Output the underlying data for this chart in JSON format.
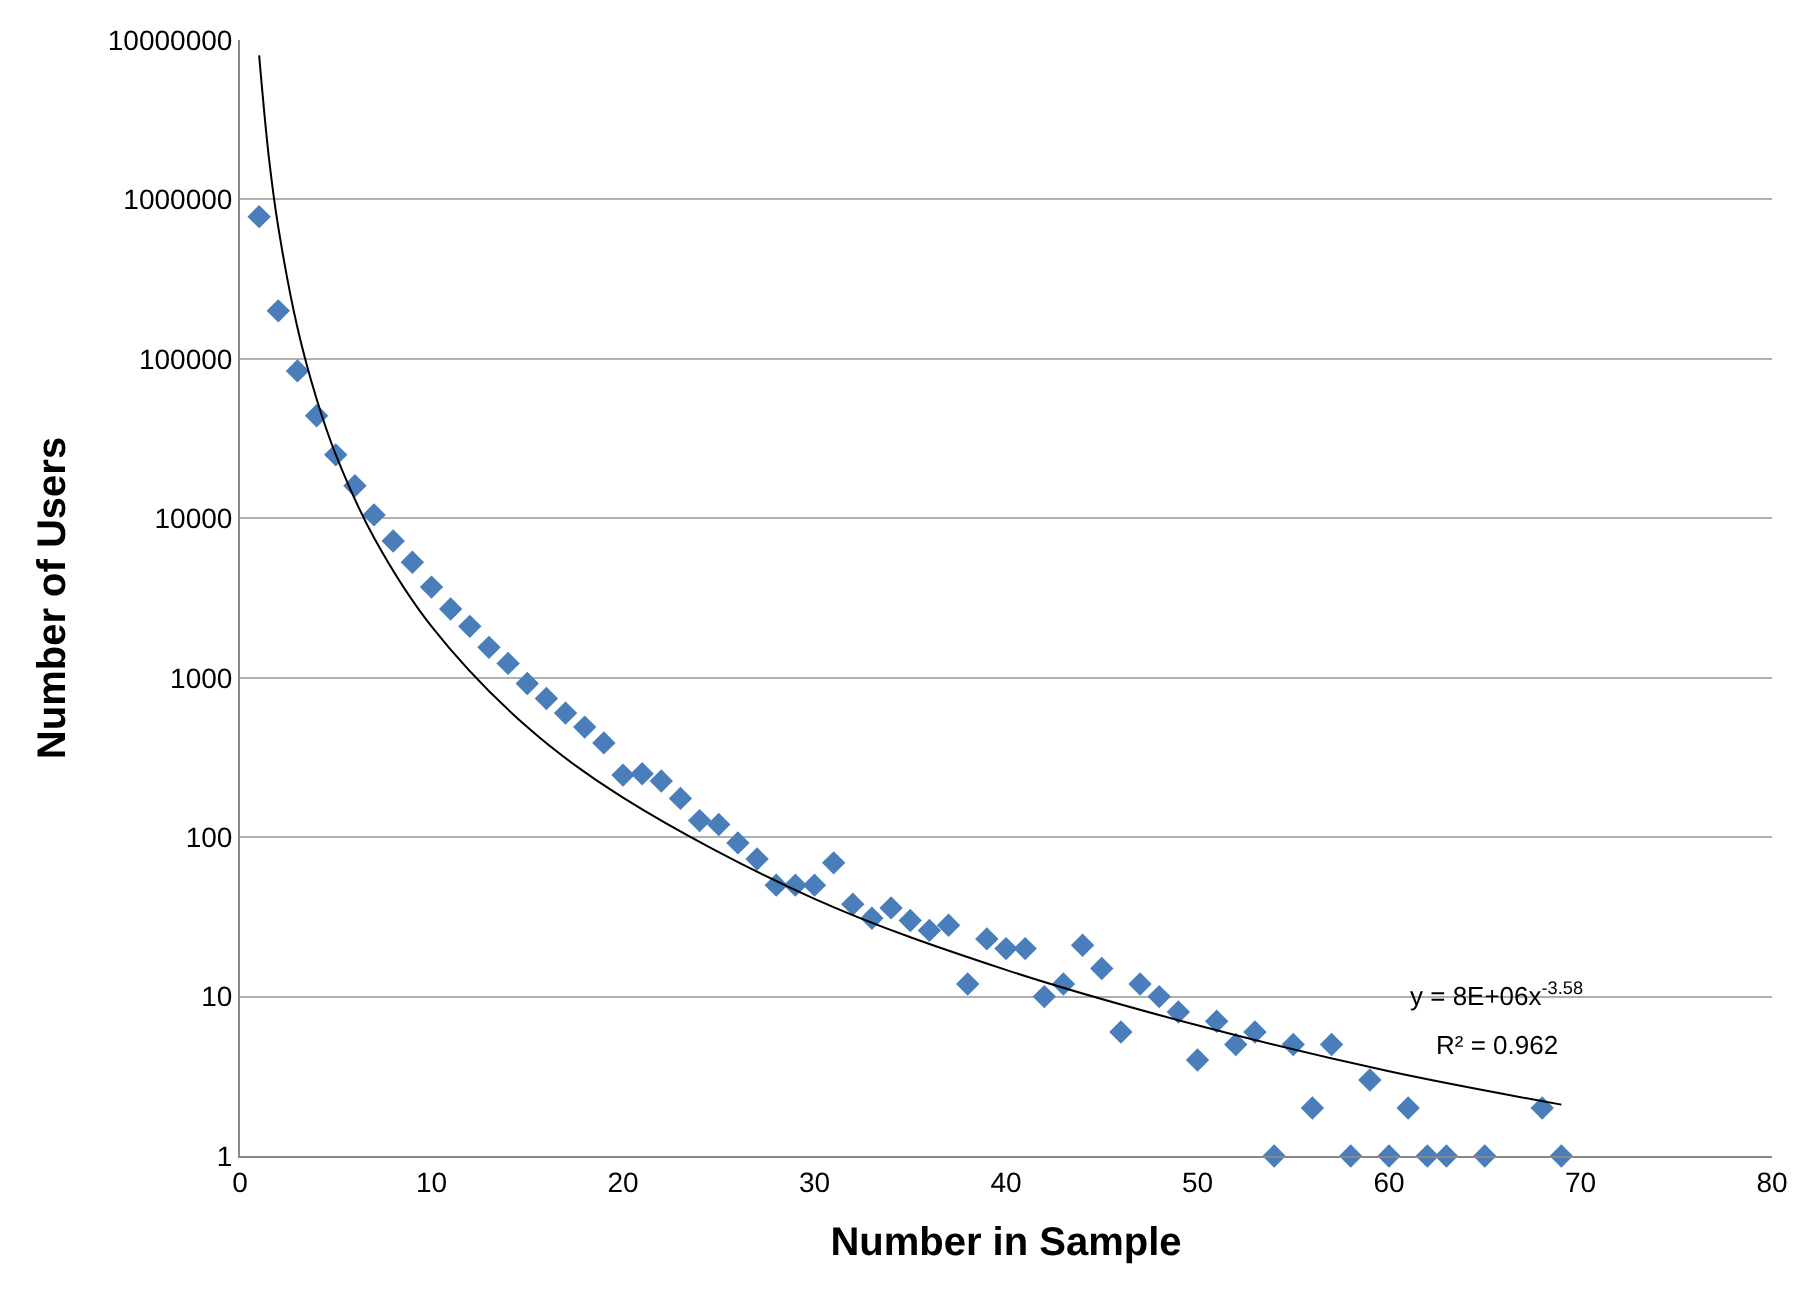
{
  "chart_data": {
    "type": "scatter",
    "xlabel": "Number in Sample",
    "ylabel": "Number of Users",
    "log": "y",
    "grid": "y",
    "marker": "diamond",
    "xlim": [
      0,
      80
    ],
    "xticks": [
      0,
      10,
      20,
      30,
      40,
      50,
      60,
      70,
      80
    ],
    "ylim": [
      1,
      10000000
    ],
    "yticks": [
      1,
      10,
      100,
      1000,
      10000,
      100000,
      1000000,
      10000000
    ],
    "series": [
      {
        "color": "#4a7ebb",
        "x": [
          1,
          2,
          3,
          4,
          5,
          6,
          7,
          8,
          9,
          10,
          11,
          12,
          13,
          14,
          15,
          16,
          17,
          18,
          19,
          20,
          21,
          22,
          23,
          24,
          25,
          26,
          27,
          28,
          29,
          30,
          31,
          32,
          33,
          34,
          35,
          36,
          37,
          38,
          39,
          40,
          41,
          42,
          43,
          44,
          45,
          46,
          47,
          48,
          49,
          50,
          51,
          52,
          53,
          54,
          55,
          56,
          57,
          58,
          59,
          60,
          61,
          62,
          63,
          65,
          68,
          69
        ],
        "values": [
          780000,
          200000,
          84000,
          44000,
          25000,
          16000,
          10500,
          7200,
          5300,
          3700,
          2700,
          2100,
          1550,
          1230,
          920,
          740,
          600,
          490,
          390,
          245,
          250,
          225,
          175,
          127,
          120,
          92,
          73,
          50,
          50,
          50,
          69,
          38,
          31,
          36,
          30,
          26,
          28,
          12,
          23,
          20,
          20,
          10,
          12,
          21,
          15,
          6,
          12,
          10,
          8,
          4,
          7,
          5,
          6,
          1,
          5,
          2,
          5,
          1,
          3,
          1,
          2,
          1,
          1,
          1,
          2,
          1
        ]
      },
      {
        "type": "line",
        "color": "#000000",
        "marker": "none",
        "x": [
          1,
          1.5,
          2,
          3,
          4,
          5,
          7,
          10,
          15,
          20,
          30,
          40,
          50,
          60,
          69
        ],
        "values": [
          8000000,
          1870000,
          669000,
          156600,
          56000,
          25100,
          7550,
          2100,
          490,
          177,
          41,
          14.7,
          6.6,
          3.4,
          2.1
        ]
      }
    ],
    "annotations": [
      "y = 8E+06x$^{-3.58}$",
      "R² = 0.962"
    ]
  }
}
